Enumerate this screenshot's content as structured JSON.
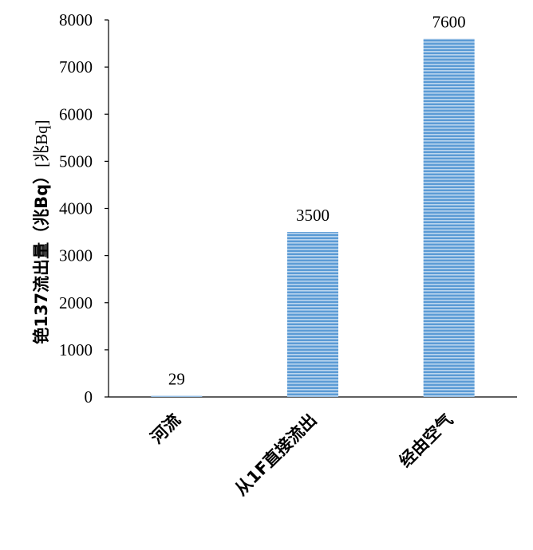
{
  "chart_data": {
    "type": "bar",
    "categories": [
      "河流",
      "从1F直接流出",
      "经由空气"
    ],
    "values": [
      29,
      3500,
      7600
    ],
    "data_labels": [
      "29",
      "3500",
      "7600"
    ],
    "ylabel": "铯137流出量（兆Bq）",
    "ylabel_unit": "[兆Bq]",
    "xlabel": "",
    "ylim": [
      0,
      8000
    ],
    "yticks": [
      0,
      1000,
      2000,
      3000,
      4000,
      5000,
      6000,
      7000,
      8000
    ],
    "grid": false,
    "legend": "none",
    "bar_color": "#5b9bd5",
    "bar_stripe_color": "#ffffff"
  }
}
